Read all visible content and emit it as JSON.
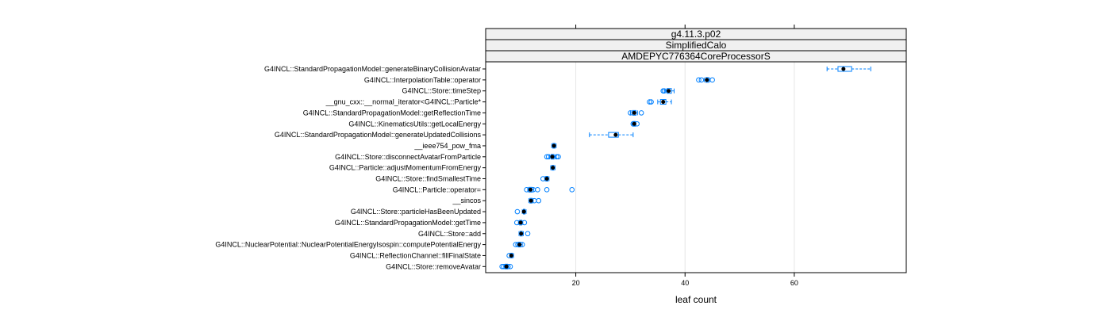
{
  "chart_data": {
    "type": "box",
    "strips": [
      "g4.11.3.p02",
      "SimplifiedCalo",
      "AMDEPYC776364CoreProcessorS"
    ],
    "xlabel": "leaf count",
    "xticks": [
      20,
      40,
      60
    ],
    "xlim": [
      3.5,
      80.5
    ],
    "grid": true,
    "categories": [
      "G4INCL::StandardPropagationModel::generateBinaryCollisionAvatar",
      "G4INCL::InterpolationTable::operator",
      "G4INCL::Store::timeStep",
      "__gnu_cxx::__normal_iterator<G4INCL::Particle*",
      "G4INCL::StandardPropagationModel::getReflectionTime",
      "G4INCL::KinematicsUtils::getLocalEnergy",
      "G4INCL::StandardPropagationModel::generateUpdatedCollisions",
      "__ieee754_pow_fma",
      "G4INCL::Store::disconnectAvatarFromParticle",
      "G4INCL::Particle::adjustMomentumFromEnergy",
      "G4INCL::Store::findSmallestTime",
      "G4INCL::Particle::operator=",
      "__sincos",
      "G4INCL::Store::particleHasBeenUpdated",
      "G4INCL::StandardPropagationModel::getTime",
      "G4INCL::Store::add",
      "G4INCL::NuclearPotential::NuclearPotentialEnergyIsospin::computePotentialEnergy",
      "G4INCL::ReflectionChannel::fillFinalState",
      "G4INCL::Store::removeAvatar"
    ],
    "boxes": [
      {
        "wmin": 66,
        "q1": 68,
        "median": 69,
        "q3": 70.5,
        "wmax": 74,
        "outliers": []
      },
      {
        "wmin": 43.5,
        "q1": 43.8,
        "median": 44,
        "q3": 44.3,
        "wmax": 44.5,
        "outliers": [
          42.5,
          43,
          45
        ]
      },
      {
        "wmin": 36.2,
        "q1": 36.7,
        "median": 37,
        "q3": 37.5,
        "wmax": 38,
        "outliers": [
          36,
          36.2
        ]
      },
      {
        "wmin": 35,
        "q1": 35.5,
        "median": 36,
        "q3": 36.5,
        "wmax": 37.5,
        "outliers": [
          33.5,
          33.8
        ]
      },
      {
        "wmin": 30,
        "q1": 30.4,
        "median": 30.7,
        "q3": 31,
        "wmax": 31.3,
        "outliers": [
          30,
          32
        ]
      },
      {
        "wmin": 30.3,
        "q1": 30.5,
        "median": 30.7,
        "q3": 30.9,
        "wmax": 31,
        "outliers": [
          30.5,
          31.2
        ]
      },
      {
        "wmin": 22.5,
        "q1": 26,
        "median": 27.3,
        "q3": 27.8,
        "wmax": 30.5,
        "outliers": []
      },
      {
        "wmin": 15.6,
        "q1": 15.8,
        "median": 16,
        "q3": 16.2,
        "wmax": 16.4,
        "outliers": []
      },
      {
        "wmin": 15.2,
        "q1": 15.5,
        "median": 15.7,
        "q3": 16,
        "wmax": 16.3,
        "outliers": [
          14.7,
          15,
          16.5,
          16.8
        ]
      },
      {
        "wmin": 15.4,
        "q1": 15.6,
        "median": 15.8,
        "q3": 16,
        "wmax": 16.2,
        "outliers": []
      },
      {
        "wmin": 14.3,
        "q1": 14.5,
        "median": 14.7,
        "q3": 14.9,
        "wmax": 15.1,
        "outliers": [
          14
        ]
      },
      {
        "wmin": 11.2,
        "q1": 11.4,
        "median": 11.7,
        "q3": 12,
        "wmax": 12.3,
        "outliers": [
          11,
          12.2,
          13,
          14.7,
          19.3
        ]
      },
      {
        "wmin": 11.4,
        "q1": 11.6,
        "median": 11.8,
        "q3": 12,
        "wmax": 12.2,
        "outliers": [
          12.4,
          13.2
        ]
      },
      {
        "wmin": 10.2,
        "q1": 10.4,
        "median": 10.5,
        "q3": 10.7,
        "wmax": 10.9,
        "outliers": [
          9.3
        ]
      },
      {
        "wmin": 9.5,
        "q1": 9.7,
        "median": 9.9,
        "q3": 10.1,
        "wmax": 10.3,
        "outliers": [
          9.2,
          10.6
        ]
      },
      {
        "wmin": 9.6,
        "q1": 9.8,
        "median": 10,
        "q3": 10.2,
        "wmax": 10.4,
        "outliers": [
          11.2
        ]
      },
      {
        "wmin": 9.3,
        "q1": 9.5,
        "median": 9.7,
        "q3": 9.9,
        "wmax": 10.2,
        "outliers": [
          9,
          9.4,
          10.2
        ]
      },
      {
        "wmin": 7.9,
        "q1": 8.1,
        "median": 8.2,
        "q3": 8.4,
        "wmax": 8.6,
        "outliers": [
          7.8
        ]
      },
      {
        "wmin": 6.9,
        "q1": 7.1,
        "median": 7.3,
        "q3": 7.5,
        "wmax": 7.7,
        "outliers": [
          6.5,
          6.8,
          7.2,
          7.6,
          8
        ]
      }
    ]
  }
}
